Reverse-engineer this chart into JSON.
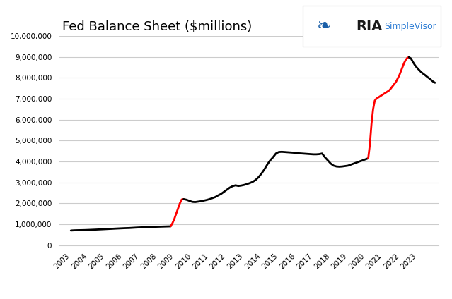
{
  "title": "Fed Balance Sheet ($millions)",
  "title_fontsize": 13,
  "background_color": "#ffffff",
  "grid_color": "#cccccc",
  "ylim": [
    0,
    10000000
  ],
  "yticks": [
    0,
    1000000,
    2000000,
    3000000,
    4000000,
    5000000,
    6000000,
    7000000,
    8000000,
    9000000,
    10000000
  ],
  "ytick_labels": [
    "0",
    "1,000,000",
    "2,000,000",
    "3,000,000",
    "4,000,000",
    "5,000,000",
    "6,000,000",
    "7,000,000",
    "8,000,000",
    "9,000,000",
    "10,000,000"
  ],
  "xtick_labels": [
    "2003",
    "2004",
    "2005",
    "2006",
    "2007",
    "2008",
    "2009",
    "2010",
    "2011",
    "2012",
    "2013",
    "2014",
    "2015",
    "2016",
    "2017",
    "2018",
    "2019",
    "2020",
    "2021",
    "2022",
    "2023"
  ],
  "xlim": [
    2002.3,
    2024.2
  ],
  "line_color_black": "#000000",
  "line_color_red": "#ff0000",
  "line_width": 2.0,
  "segments": [
    {
      "color": "black",
      "x_start": 2003.0,
      "x_end": 2008.75,
      "y_values": [
        700000,
        710000,
        715000,
        718000,
        722000,
        728000,
        735000,
        742000,
        750000,
        758000,
        766000,
        775000,
        783000,
        792000,
        800000,
        808000,
        815000,
        820000,
        830000,
        840000,
        848000,
        855000,
        862000,
        870000,
        875000,
        880000,
        885000,
        890000,
        895000,
        900000
      ]
    },
    {
      "color": "red",
      "x_start": 2008.75,
      "x_end": 2009.5,
      "y_values": [
        900000,
        1050000,
        1250000,
        1500000,
        1750000,
        2000000,
        2180000,
        2200000
      ]
    },
    {
      "color": "black",
      "x_start": 2009.5,
      "x_end": 2020.15,
      "y_values": [
        2200000,
        2170000,
        2120000,
        2070000,
        2060000,
        2080000,
        2100000,
        2130000,
        2160000,
        2200000,
        2250000,
        2300000,
        2380000,
        2450000,
        2550000,
        2650000,
        2750000,
        2820000,
        2860000,
        2830000,
        2850000,
        2880000,
        2920000,
        2970000,
        3030000,
        3120000,
        3250000,
        3420000,
        3620000,
        3850000,
        4050000,
        4200000,
        4380000,
        4450000,
        4460000,
        4450000,
        4440000,
        4430000,
        4420000,
        4400000,
        4390000,
        4380000,
        4370000,
        4360000,
        4350000,
        4340000,
        4340000,
        4350000,
        4380000,
        4200000,
        4050000,
        3900000,
        3800000,
        3760000,
        3750000,
        3760000,
        3780000,
        3800000,
        3850000,
        3900000,
        3950000,
        4000000,
        4050000,
        4100000,
        4150000
      ]
    },
    {
      "color": "red",
      "x_start": 2020.15,
      "x_end": 2022.5,
      "y_values": [
        4150000,
        4800000,
        5800000,
        6500000,
        6900000,
        7000000,
        7050000,
        7100000,
        7150000,
        7200000,
        7250000,
        7300000,
        7350000,
        7400000,
        7500000,
        7600000,
        7700000,
        7800000,
        7950000,
        8100000,
        8300000,
        8500000,
        8700000,
        8850000,
        8950000,
        8980000
      ]
    },
    {
      "color": "black",
      "x_start": 2022.5,
      "x_end": 2024.0,
      "y_values": [
        8980000,
        8920000,
        8750000,
        8600000,
        8480000,
        8380000,
        8280000,
        8200000,
        8130000,
        8050000,
        7980000,
        7900000,
        7820000,
        7760000
      ]
    }
  ]
}
